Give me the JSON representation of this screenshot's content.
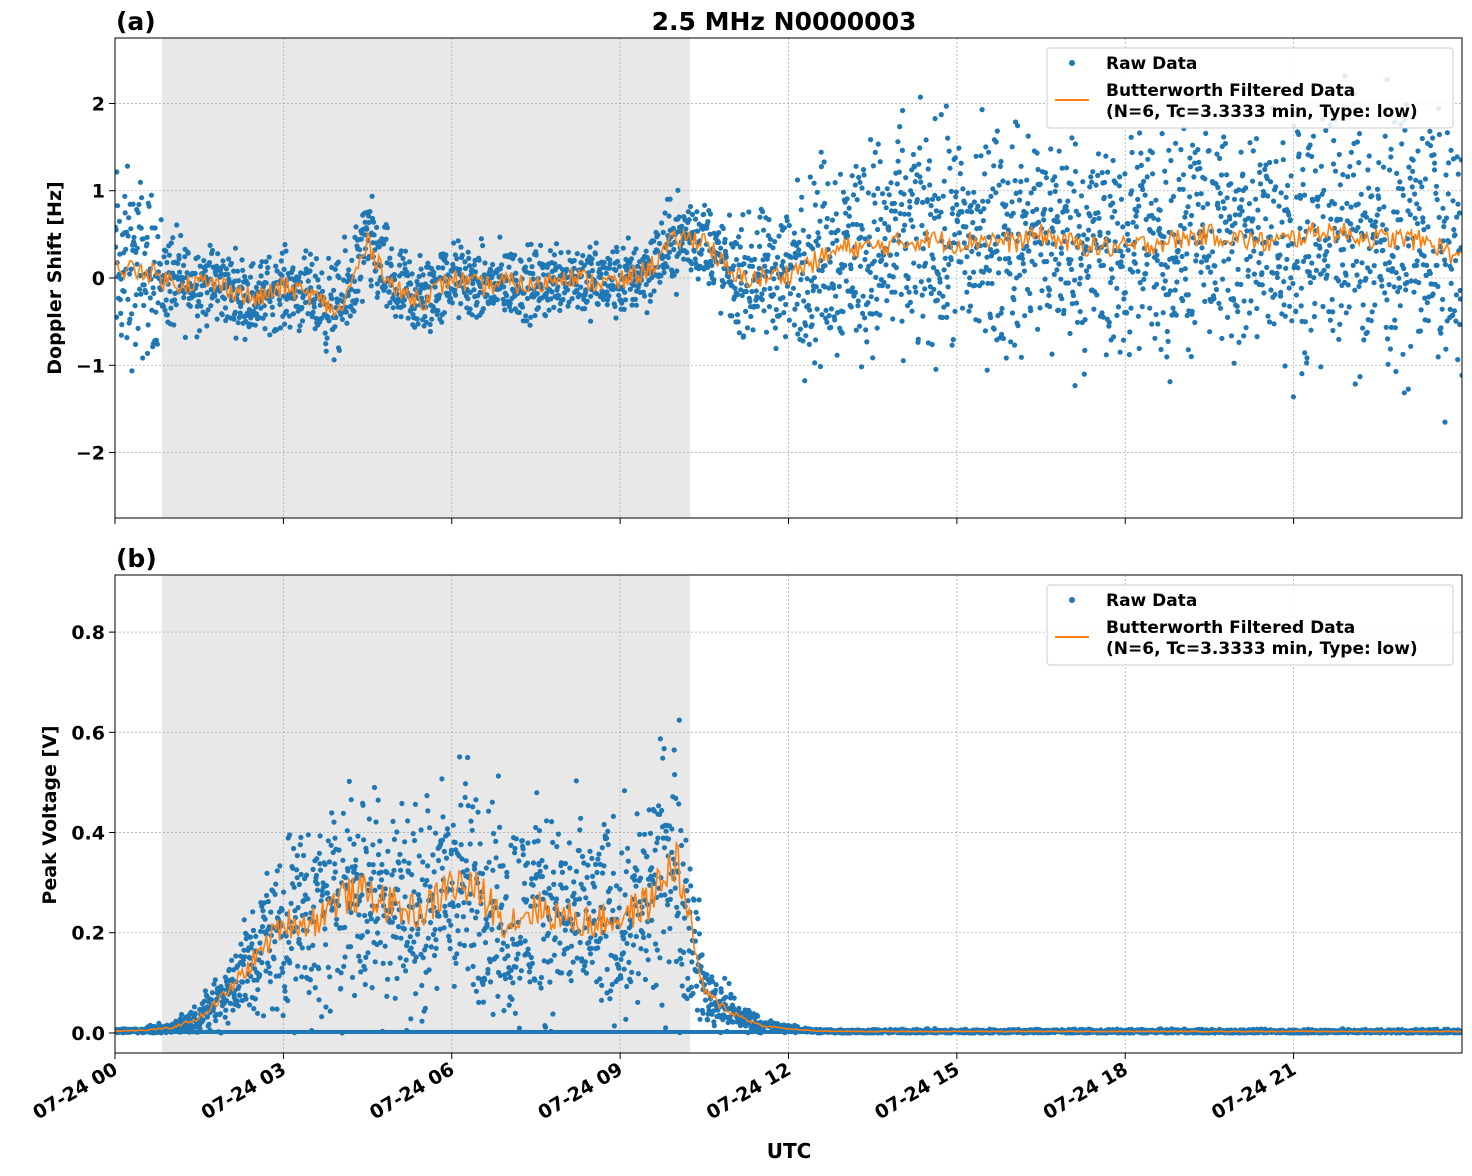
{
  "figure_title": "2.5 MHz N0000003",
  "xlabel": "UTC",
  "colors": {
    "raw": "#1f77b4",
    "filtered": "#ff7f0e",
    "shade": "#e8e8e8",
    "grid": "#b0b0b0"
  },
  "chart_data": [
    {
      "type": "scatter",
      "panel_label": "(a)",
      "ylabel": "Doppler Shift [Hz]",
      "ylim": [
        -2.75,
        2.75
      ],
      "yticks": [
        -2,
        -1,
        0,
        1,
        2
      ],
      "ytick_labels": [
        "−2",
        "−1",
        "0",
        "1",
        "2"
      ],
      "xlim": [
        "07-24 00:00",
        "07-25 00:00"
      ],
      "xticks": [
        "07-24 00",
        "07-24 03",
        "07-24 06",
        "07-24 09",
        "07-24 12",
        "07-24 15",
        "07-24 18",
        "07-24 21"
      ],
      "grid": true,
      "shaded_interval": [
        "00:50",
        "10:15"
      ],
      "legend": {
        "placement": "top-right",
        "entries": [
          "Raw Data",
          "Butterworth Filtered Data",
          "(N=6, Tc=3.3333 min, Type: low)"
        ]
      },
      "series": [
        {
          "name": "Butterworth Filtered Data",
          "style": "line",
          "times": [
            "00:00",
            "00:30",
            "01:00",
            "01:30",
            "02:00",
            "02:30",
            "03:00",
            "03:30",
            "04:00",
            "04:30",
            "05:00",
            "05:30",
            "06:00",
            "06:30",
            "07:00",
            "07:30",
            "08:00",
            "08:30",
            "09:00",
            "09:30",
            "10:00",
            "10:30",
            "11:00",
            "11:30",
            "12:00",
            "12:30",
            "13:00",
            "13:30",
            "14:00",
            "14:30",
            "15:00",
            "15:30",
            "16:00",
            "16:30",
            "17:00",
            "17:30",
            "18:00",
            "18:30",
            "19:00",
            "19:30",
            "20:00",
            "20:30",
            "21:00",
            "21:30",
            "22:00",
            "22:30",
            "23:00",
            "23:30",
            "24:00"
          ],
          "values": [
            0.1,
            0.1,
            -0.05,
            -0.05,
            -0.1,
            -0.25,
            -0.1,
            -0.2,
            -0.4,
            0.4,
            -0.15,
            -0.25,
            0.0,
            -0.1,
            -0.05,
            -0.1,
            0.05,
            -0.05,
            -0.05,
            0.1,
            0.45,
            0.45,
            0.0,
            0.0,
            0.05,
            0.2,
            0.35,
            0.35,
            0.4,
            0.45,
            0.4,
            0.45,
            0.4,
            0.5,
            0.4,
            0.35,
            0.35,
            0.4,
            0.45,
            0.5,
            0.45,
            0.4,
            0.45,
            0.55,
            0.5,
            0.45,
            0.45,
            0.4,
            0.2
          ]
        },
        {
          "name": "Raw Data",
          "style": "points",
          "spread_hz": [
            0.8,
            0.7,
            0.4,
            0.35,
            0.3,
            0.3,
            0.3,
            0.3,
            0.4,
            0.4,
            0.35,
            0.35,
            0.3,
            0.3,
            0.3,
            0.3,
            0.3,
            0.3,
            0.3,
            0.3,
            0.35,
            0.35,
            0.4,
            0.5,
            0.6,
            0.8,
            0.85,
            0.85,
            0.9,
            0.9,
            0.9,
            0.9,
            0.9,
            0.9,
            0.9,
            0.9,
            0.95,
            0.95,
            0.95,
            0.95,
            0.95,
            0.95,
            1.0,
            1.0,
            1.0,
            1.0,
            1.0,
            1.0,
            1.0
          ]
        }
      ]
    },
    {
      "type": "scatter",
      "panel_label": "(b)",
      "ylabel": "Peak Voltage [V]",
      "ylim": [
        -0.04,
        0.914
      ],
      "yticks": [
        0.0,
        0.2,
        0.4,
        0.6,
        0.8
      ],
      "ytick_labels": [
        "0.0",
        "0.2",
        "0.4",
        "0.6",
        "0.8"
      ],
      "xlim": [
        "07-24 00:00",
        "07-25 00:00"
      ],
      "xticks": [
        "07-24 00",
        "07-24 03",
        "07-24 06",
        "07-24 09",
        "07-24 12",
        "07-24 15",
        "07-24 18",
        "07-24 21"
      ],
      "grid": true,
      "shaded_interval": [
        "00:50",
        "10:15"
      ],
      "legend": {
        "placement": "top-right",
        "entries": [
          "Raw Data",
          "Butterworth Filtered Data",
          "(N=6, Tc=3.3333 min, Type: low)"
        ]
      },
      "series": [
        {
          "name": "Butterworth Filtered Data",
          "style": "line",
          "times": [
            "00:00",
            "00:30",
            "01:00",
            "01:30",
            "02:00",
            "02:30",
            "03:00",
            "03:30",
            "04:00",
            "04:30",
            "05:00",
            "05:30",
            "06:00",
            "06:30",
            "07:00",
            "07:30",
            "08:00",
            "08:30",
            "09:00",
            "09:30",
            "10:00",
            "10:30",
            "11:00",
            "11:30",
            "12:00",
            "12:30",
            "13:00",
            "13:30",
            "14:00",
            "14:30",
            "15:00",
            "15:30",
            "16:00",
            "16:30",
            "17:00",
            "17:30",
            "18:00",
            "18:30",
            "19:00",
            "19:30",
            "20:00",
            "20:30",
            "21:00",
            "21:30",
            "22:00",
            "22:30",
            "23:00",
            "23:30",
            "24:00"
          ],
          "values": [
            0.004,
            0.005,
            0.01,
            0.03,
            0.08,
            0.15,
            0.22,
            0.22,
            0.27,
            0.28,
            0.25,
            0.24,
            0.3,
            0.28,
            0.22,
            0.25,
            0.23,
            0.22,
            0.23,
            0.26,
            0.35,
            0.08,
            0.04,
            0.015,
            0.008,
            0.004,
            0.003,
            0.003,
            0.003,
            0.003,
            0.003,
            0.003,
            0.003,
            0.003,
            0.003,
            0.003,
            0.003,
            0.003,
            0.003,
            0.003,
            0.003,
            0.003,
            0.003,
            0.003,
            0.003,
            0.003,
            0.003,
            0.003,
            0.003
          ]
        },
        {
          "name": "Raw Data",
          "style": "points",
          "spread_v": [
            0.003,
            0.004,
            0.008,
            0.02,
            0.05,
            0.09,
            0.12,
            0.14,
            0.15,
            0.16,
            0.15,
            0.14,
            0.17,
            0.16,
            0.15,
            0.15,
            0.14,
            0.14,
            0.14,
            0.16,
            0.2,
            0.05,
            0.03,
            0.01,
            0.005,
            0.003,
            0.003,
            0.003,
            0.003,
            0.003,
            0.003,
            0.003,
            0.003,
            0.003,
            0.003,
            0.003,
            0.003,
            0.003,
            0.003,
            0.003,
            0.003,
            0.003,
            0.003,
            0.003,
            0.003,
            0.003,
            0.003,
            0.003,
            0.003
          ]
        }
      ]
    }
  ]
}
